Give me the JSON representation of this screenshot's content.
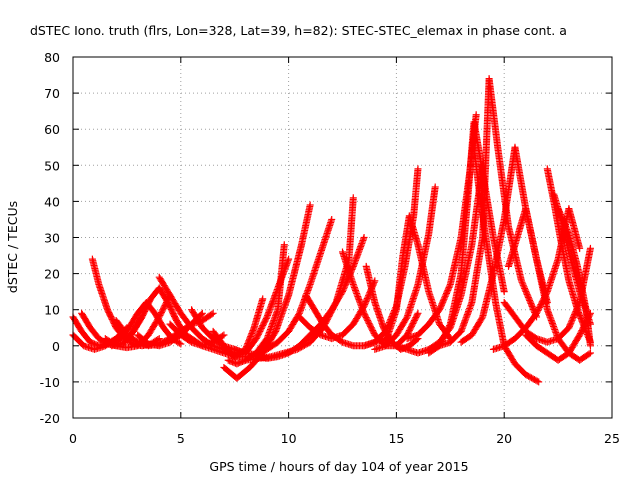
{
  "chart_data": {
    "type": "scatter",
    "title": "dSTEC Iono. truth (flrs, Lon=328, Lat=39, h=82): STEC-STEC_elemax in phase cont. a",
    "xlabel": "GPS time / hours of day 104 of year 2015",
    "ylabel": "dSTEC  / TECUs",
    "xlim": [
      0,
      25
    ],
    "ylim": [
      -20,
      80
    ],
    "xticks": [
      "0",
      "5",
      "10",
      "15",
      "20",
      "25"
    ],
    "yticks": [
      "-20",
      "-10",
      "0",
      "10",
      "20",
      "30",
      "40",
      "50",
      "60",
      "70",
      "80"
    ],
    "grid": true,
    "marker": "+",
    "color": "#ff0000",
    "arcs": [
      {
        "x": [
          0.0,
          0.4,
          0.8,
          1.2,
          1.6,
          2.0,
          2.4
        ],
        "y": [
          8,
          4,
          1,
          0,
          0.5,
          2,
          4
        ]
      },
      {
        "x": [
          0.0,
          0.5,
          1.0,
          1.5,
          2.0,
          2.5
        ],
        "y": [
          3,
          0,
          -1,
          0,
          2,
          5
        ]
      },
      {
        "x": [
          0.4,
          0.8,
          1.2,
          1.6,
          2.0,
          2.4,
          2.8,
          3.2
        ],
        "y": [
          9,
          5,
          2,
          0.5,
          0,
          1,
          4,
          8
        ]
      },
      {
        "x": [
          0.9,
          1.2,
          1.6,
          2.0,
          2.4,
          2.8,
          3.2,
          3.6,
          4.0
        ],
        "y": [
          24,
          17,
          10,
          5,
          2,
          0.5,
          0,
          0.5,
          2
        ]
      },
      {
        "x": [
          1.5,
          2.0,
          2.5,
          3.0,
          3.5,
          4.0,
          4.5
        ],
        "y": [
          2,
          0,
          -0.5,
          0,
          3,
          8,
          14
        ]
      },
      {
        "x": [
          1.8,
          2.2,
          2.6,
          3.0,
          3.4,
          3.8,
          4.2,
          4.6,
          5.0
        ],
        "y": [
          0,
          2,
          5,
          9,
          12,
          9,
          5,
          2,
          0.5
        ]
      },
      {
        "x": [
          2.0,
          2.5,
          3.0,
          3.5,
          4.0,
          4.5,
          5.0,
          5.5,
          6.0,
          6.5
        ],
        "y": [
          7,
          3,
          1,
          0,
          0.5,
          2,
          4,
          6,
          7,
          9
        ]
      },
      {
        "x": [
          2.4,
          2.8,
          3.2,
          3.6,
          4.0,
          4.4,
          4.8,
          5.2
        ],
        "y": [
          1,
          4,
          8,
          13,
          16,
          12,
          7,
          3
        ]
      },
      {
        "x": [
          3.0,
          3.5,
          4.0,
          4.5,
          5.0,
          5.5,
          6.0
        ],
        "y": [
          3,
          0.5,
          0,
          1,
          3,
          6,
          9
        ]
      },
      {
        "x": [
          4.0,
          4.5,
          5.0,
          5.5,
          6.0,
          6.5,
          7.0,
          7.5
        ],
        "y": [
          19,
          14,
          9,
          5,
          2,
          0,
          -1,
          -2
        ]
      },
      {
        "x": [
          4.5,
          5.0,
          5.5,
          6.0,
          6.5,
          7.0
        ],
        "y": [
          6,
          3,
          1,
          0,
          1,
          3
        ]
      },
      {
        "x": [
          5.0,
          5.5,
          6.0,
          6.5,
          7.0,
          7.5,
          8.0
        ],
        "y": [
          4,
          2,
          0,
          -1,
          -2,
          -3,
          -3
        ]
      },
      {
        "x": [
          5.5,
          6.0,
          6.5,
          7.0,
          7.5,
          8.0
        ],
        "y": [
          10,
          5,
          2,
          0,
          -1,
          -2
        ]
      },
      {
        "x": [
          6.5,
          7.0,
          7.5,
          8.0,
          8.4,
          8.8
        ],
        "y": [
          4,
          0,
          -3,
          -1,
          5,
          13
        ]
      },
      {
        "x": [
          7.0,
          7.5,
          8.0,
          8.5,
          9.0,
          9.5,
          10.0
        ],
        "y": [
          -1,
          -3,
          -2,
          2,
          8,
          16,
          24
        ]
      },
      {
        "x": [
          7.0,
          7.6,
          8.2,
          8.8,
          9.4,
          10.0,
          10.6,
          11.0
        ],
        "y": [
          -6,
          -9,
          -6,
          -2,
          4,
          14,
          28,
          39
        ]
      },
      {
        "x": [
          7.5,
          8.0,
          8.5,
          9.0,
          9.5,
          10.0,
          10.5,
          11.0,
          11.5,
          12.0
        ],
        "y": [
          -1,
          -2,
          -2.5,
          -1,
          1,
          4,
          9,
          17,
          26,
          35
        ]
      },
      {
        "x": [
          7.2,
          7.6,
          8.0,
          8.5,
          9.0,
          9.5,
          9.8
        ],
        "y": [
          -4,
          -5,
          -4,
          -2,
          2,
          10,
          28
        ]
      },
      {
        "x": [
          8.0,
          8.6,
          9.2,
          9.8,
          10.4,
          11.0,
          11.6,
          12.2,
          12.8,
          13.0
        ],
        "y": [
          -4,
          -3.5,
          -3,
          -2,
          -1,
          1,
          5,
          12,
          24,
          41
        ]
      },
      {
        "x": [
          8.5,
          9.0,
          9.5,
          10.0,
          10.5,
          11.0,
          11.5,
          12.0,
          12.5,
          13.0,
          13.5
        ],
        "y": [
          -3,
          -3.5,
          -3,
          -2,
          0,
          3,
          6,
          10,
          15,
          22,
          30
        ]
      },
      {
        "x": [
          10.8,
          11.2,
          11.6,
          12.0,
          12.5,
          13.0,
          13.5,
          14.0,
          14.5
        ],
        "y": [
          14,
          10,
          6,
          3,
          1,
          0,
          0,
          1,
          2
        ]
      },
      {
        "x": [
          10.5,
          11.0,
          11.5,
          12.0,
          12.5,
          13.0,
          13.5,
          14.0
        ],
        "y": [
          8,
          5,
          3,
          2,
          3,
          6,
          11,
          18
        ]
      },
      {
        "x": [
          12.5,
          13.0,
          13.5,
          14.0,
          14.5,
          15.0,
          15.5,
          16.0
        ],
        "y": [
          26,
          17,
          9,
          3,
          0,
          0,
          3,
          9
        ]
      },
      {
        "x": [
          13.6,
          14.0,
          14.4,
          14.8,
          15.2,
          15.6,
          16.0
        ],
        "y": [
          22,
          12,
          5,
          1,
          -1,
          0,
          2
        ]
      },
      {
        "x": [
          13.5,
          14.0,
          14.5,
          15.0,
          15.4,
          15.8,
          16.0
        ],
        "y": [
          0,
          1,
          4,
          11,
          22,
          36,
          49
        ]
      },
      {
        "x": [
          14.0,
          14.5,
          15.0,
          15.5,
          16.0,
          16.5,
          16.8
        ],
        "y": [
          -1,
          0,
          3,
          8,
          17,
          31,
          44
        ]
      },
      {
        "x": [
          14.5,
          15.0,
          15.3,
          15.6,
          16.0,
          16.5,
          17.0,
          17.5
        ],
        "y": [
          1,
          10,
          25,
          36,
          28,
          15,
          6,
          2
        ]
      },
      {
        "x": [
          15.0,
          15.5,
          16.0,
          16.5,
          17.0,
          17.5,
          18.0,
          18.5,
          19.0
        ],
        "y": [
          0,
          -1,
          -2,
          -1,
          1,
          5,
          14,
          28,
          50
        ]
      },
      {
        "x": [
          15.5,
          16.0,
          16.5,
          17.0,
          17.5,
          18.0,
          18.4,
          18.7
        ],
        "y": [
          2,
          3,
          6,
          10,
          17,
          30,
          48,
          64
        ]
      },
      {
        "x": [
          16.5,
          17.0,
          17.5,
          18.0,
          18.3,
          18.6,
          19.0,
          19.5,
          20.0
        ],
        "y": [
          -2,
          0,
          6,
          20,
          40,
          62,
          48,
          30,
          15
        ]
      },
      {
        "x": [
          17.0,
          17.5,
          18.0,
          18.5,
          19.0,
          19.3,
          19.7,
          20.2,
          20.8,
          21.5
        ],
        "y": [
          0,
          1,
          4,
          12,
          30,
          74,
          55,
          33,
          18,
          8
        ]
      },
      {
        "x": [
          18.0,
          18.5,
          19.0,
          19.5,
          20.0,
          20.5,
          21.0,
          21.5,
          22.0
        ],
        "y": [
          1,
          3,
          8,
          20,
          35,
          55,
          38,
          24,
          12
        ]
      },
      {
        "x": [
          18.6,
          18.9,
          19.2,
          19.6,
          20.0,
          20.5,
          21.0,
          21.6
        ],
        "y": [
          55,
          40,
          28,
          12,
          0,
          -5,
          -8,
          -10
        ]
      },
      {
        "x": [
          19.5,
          20.0,
          20.5,
          21.0,
          21.5,
          22.0,
          22.5,
          23.0,
          23.5
        ],
        "y": [
          -1,
          0,
          2,
          5,
          9,
          15,
          24,
          38,
          27
        ]
      },
      {
        "x": [
          20.0,
          20.5,
          21.0,
          21.5,
          22.0,
          22.5,
          23.0,
          23.5,
          24.0
        ],
        "y": [
          12,
          8,
          4,
          2,
          1,
          2,
          5,
          12,
          27
        ]
      },
      {
        "x": [
          20.2,
          20.6,
          21.0,
          21.5,
          22.0,
          22.5,
          23.0,
          23.5,
          24.0
        ],
        "y": [
          22,
          30,
          38,
          24,
          10,
          2,
          -2,
          -4,
          -2
        ]
      },
      {
        "x": [
          21.0,
          21.5,
          22.0,
          22.5,
          23.0,
          23.5,
          24.0
        ],
        "y": [
          3,
          0,
          -2,
          -4,
          -2,
          3,
          9
        ]
      },
      {
        "x": [
          22.0,
          22.3,
          22.6,
          23.0,
          23.4,
          23.8,
          24.0
        ],
        "y": [
          49,
          40,
          30,
          18,
          10,
          4,
          1
        ]
      },
      {
        "x": [
          22.3,
          22.6,
          23.0,
          23.5,
          24.0
        ],
        "y": [
          42,
          36,
          26,
          15,
          6
        ]
      },
      {
        "x": [
          22.5,
          23.0,
          23.4,
          23.8,
          24.0
        ],
        "y": [
          38,
          31,
          22,
          10,
          0
        ]
      }
    ]
  }
}
